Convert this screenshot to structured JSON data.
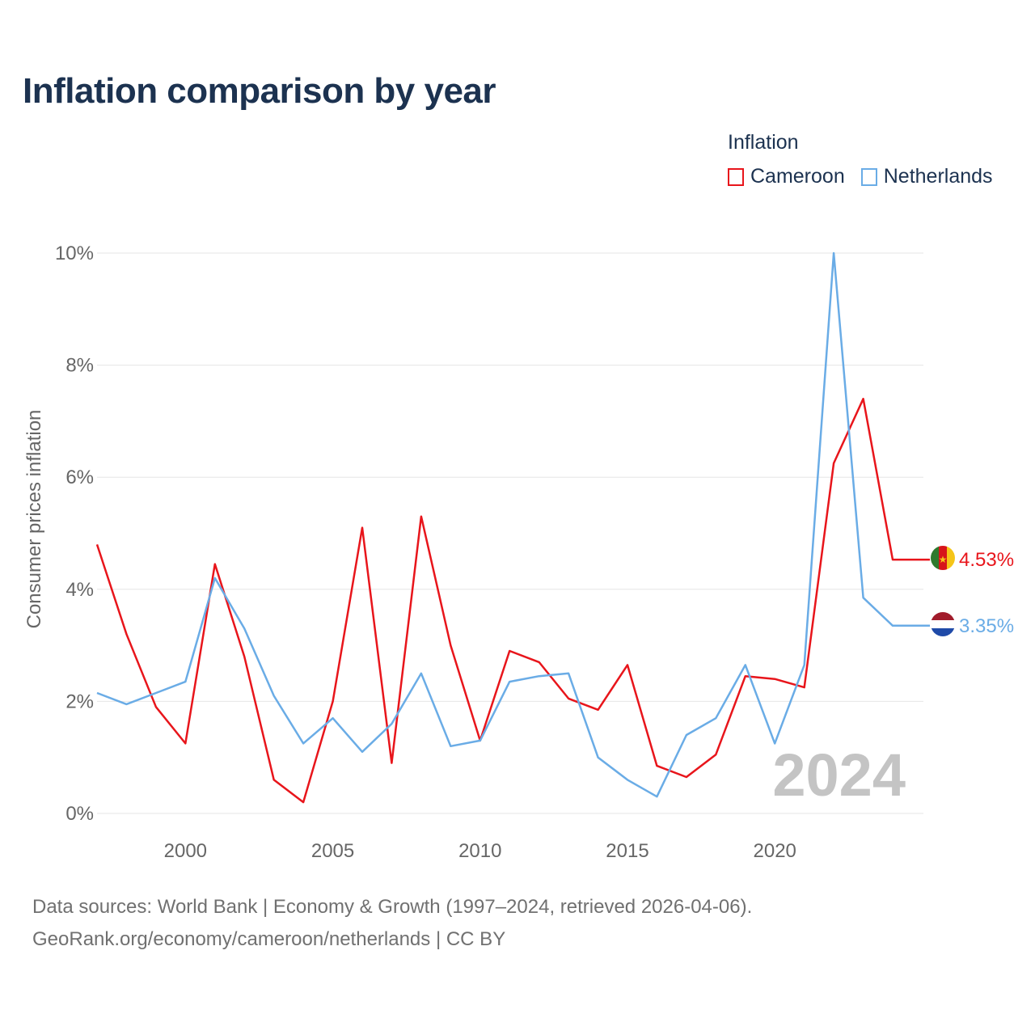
{
  "title": "Inflation comparison by year",
  "legend": {
    "title": "Inflation",
    "items": [
      {
        "label": "Cameroon",
        "color": "#e8151b"
      },
      {
        "label": "Netherlands",
        "color": "#6aace6"
      }
    ]
  },
  "footer": {
    "line1": "Data sources: World Bank | Economy & Growth (1997–2024, retrieved 2026-04-06).",
    "line2": "GeoRank.org/economy/cameroon/netherlands | CC BY"
  },
  "chart_data": {
    "type": "line",
    "ylabel": "Consumer prices inflation",
    "xlabel": "",
    "ylim": [
      0,
      10
    ],
    "xlim": [
      1997,
      2024
    ],
    "yticks": [
      0,
      2,
      4,
      6,
      8,
      10
    ],
    "ytick_labels": [
      "0%",
      "2%",
      "4%",
      "6%",
      "8%",
      "10%"
    ],
    "xticks": [
      2000,
      2005,
      2010,
      2015,
      2020
    ],
    "xtick_labels": [
      "2000",
      "2005",
      "2010",
      "2015",
      "2020"
    ],
    "watermark_year": "2024",
    "x": [
      1997,
      1998,
      1999,
      2000,
      2001,
      2002,
      2003,
      2004,
      2005,
      2006,
      2007,
      2008,
      2009,
      2010,
      2011,
      2012,
      2013,
      2014,
      2015,
      2016,
      2017,
      2018,
      2019,
      2020,
      2021,
      2022,
      2023,
      2024
    ],
    "series": [
      {
        "name": "Cameroon",
        "color": "#e8151b",
        "end_label": "4.53%",
        "values": [
          4.8,
          3.2,
          1.9,
          1.25,
          4.45,
          2.8,
          0.6,
          0.2,
          2.0,
          5.1,
          0.9,
          5.3,
          3.0,
          1.3,
          2.9,
          2.7,
          2.05,
          1.85,
          2.65,
          0.85,
          0.65,
          1.05,
          2.45,
          2.4,
          2.25,
          6.25,
          7.4,
          4.53
        ]
      },
      {
        "name": "Netherlands",
        "color": "#6aace6",
        "end_label": "3.35%",
        "values": [
          2.15,
          1.95,
          2.15,
          2.35,
          4.2,
          3.3,
          2.1,
          1.25,
          1.7,
          1.1,
          1.6,
          2.5,
          1.2,
          1.3,
          2.35,
          2.45,
          2.5,
          1.0,
          0.6,
          0.3,
          1.4,
          1.7,
          2.65,
          1.25,
          2.65,
          10.0,
          3.85,
          3.35
        ]
      }
    ]
  }
}
